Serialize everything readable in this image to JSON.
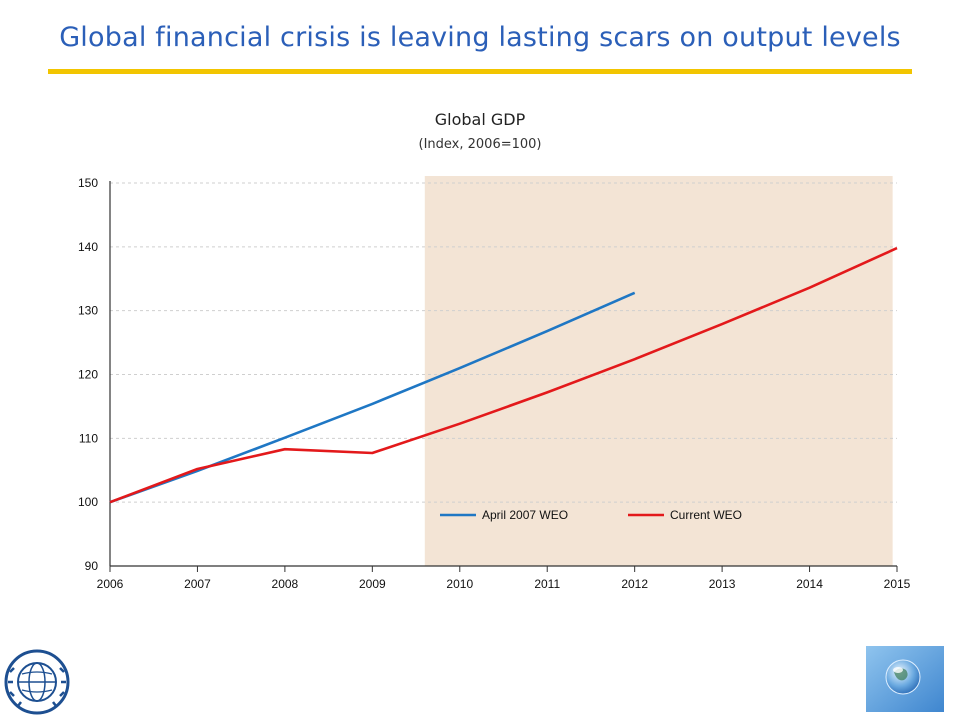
{
  "slide": {
    "title": "Global financial crisis is leaving lasting scars on output levels"
  },
  "logo": {
    "text": "INTERNATIONAL MONETARY FUND"
  },
  "chart_data": {
    "type": "line",
    "title": "Global GDP",
    "subtitle": "(Index, 2006=100)",
    "xlabel": "",
    "ylabel": "",
    "xlim": [
      2006,
      2015
    ],
    "ylim": [
      90,
      150
    ],
    "x_ticks": [
      2006,
      2007,
      2008,
      2009,
      2010,
      2011,
      2012,
      2013,
      2014,
      2015
    ],
    "y_ticks": [
      90,
      100,
      110,
      120,
      130,
      140,
      150
    ],
    "grid": true,
    "shaded_region": {
      "x_start": 2009.6,
      "x_end": 2014.95,
      "color": "#f3e4d5"
    },
    "legend_position": "bottom-right",
    "series": [
      {
        "name": "April 2007 WEO",
        "color": "#1f77c4",
        "x": [
          2006,
          2007,
          2008,
          2009,
          2010,
          2011,
          2012
        ],
        "values": [
          100.0,
          104.9,
          110.1,
          115.4,
          121.0,
          126.8,
          132.8
        ]
      },
      {
        "name": "Current WEO",
        "color": "#e3191b",
        "x": [
          2006,
          2007,
          2008,
          2009,
          2010,
          2011,
          2012,
          2013,
          2014,
          2015
        ],
        "values": [
          100.0,
          105.2,
          108.3,
          107.7,
          112.3,
          117.2,
          122.4,
          127.9,
          133.6,
          139.8
        ]
      }
    ]
  }
}
